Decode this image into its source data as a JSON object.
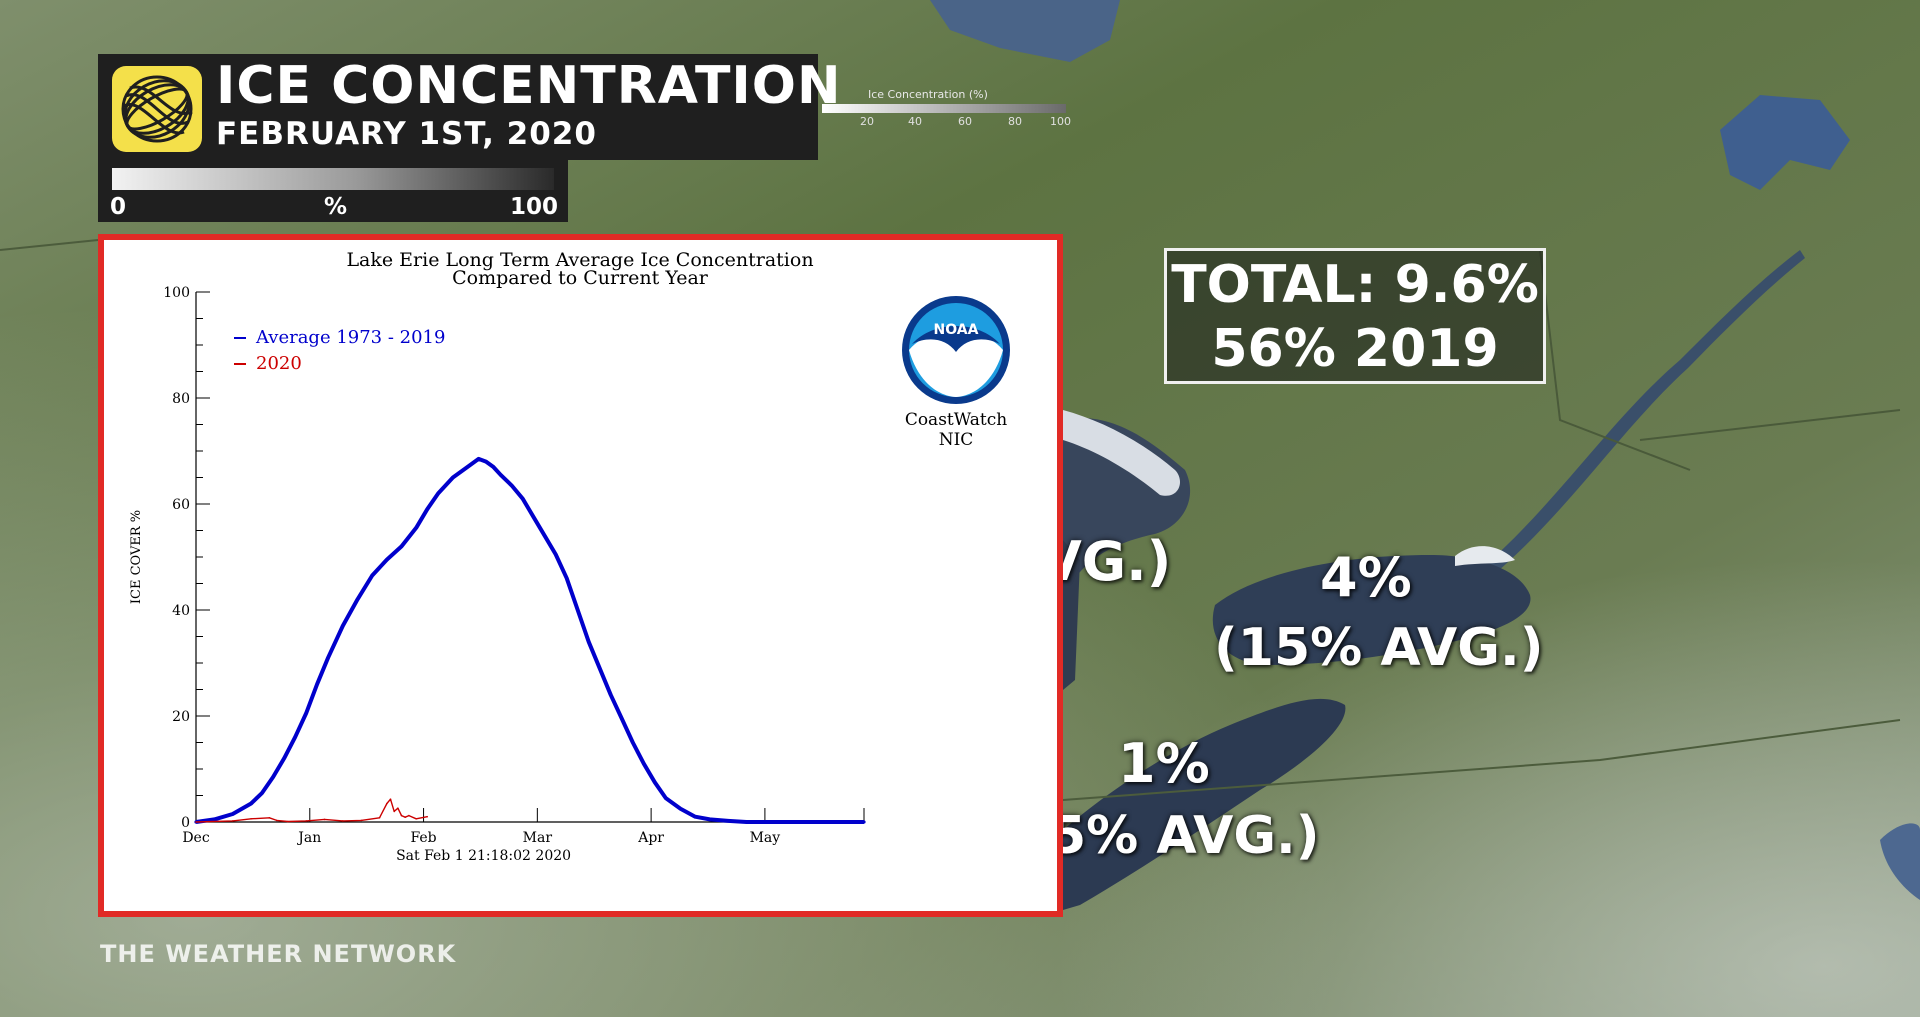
{
  "header": {
    "title": "ICE CONCENTRATION",
    "subtitle": "FEBRUARY 1ST, 2020"
  },
  "legend_scale": {
    "min": "0",
    "unit": "%",
    "max": "100"
  },
  "map_scale": {
    "title": "Ice Concentration (%)",
    "ticks": [
      "20",
      "40",
      "60",
      "80",
      "100"
    ]
  },
  "total_box": {
    "line1": "TOTAL: 9.6%",
    "line2": "56% 2019"
  },
  "lake_labels": {
    "huron": {
      "value": "VG.)"
    },
    "ontario": {
      "value": "4%",
      "avg": "(15% AVG.)"
    },
    "erie": {
      "value": "1%",
      "avg": "5% AVG.)"
    }
  },
  "branding": "THE WEATHER NETWORK",
  "colors": {
    "frame_red": "#e12a25",
    "average_series": "#0000cc",
    "current_series": "#cc0000",
    "logo_yellow": "#f4e04a"
  },
  "noaa_logo": {
    "text": "NOAA",
    "caption_line1": "CoastWatch",
    "caption_line2": "NIC"
  },
  "chart_data": {
    "type": "line",
    "title": "Lake Erie Long Term Average Ice Concentration",
    "subtitle": "Compared to Current Year",
    "ylabel": "ICE COVER %",
    "xlabel": "Sat Feb  1 21:18:02 2020",
    "ylim": [
      0,
      100
    ],
    "yticks": [
      "0",
      "20",
      "40",
      "60",
      "80",
      "100"
    ],
    "xlim": [
      0,
      182
    ],
    "xticks": [
      {
        "label": "Dec",
        "day": 0
      },
      {
        "label": "Jan",
        "day": 31
      },
      {
        "label": "Feb",
        "day": 62
      },
      {
        "label": "Mar",
        "day": 93
      },
      {
        "label": "Apr",
        "day": 124
      },
      {
        "label": "May",
        "day": 155
      }
    ],
    "legend_position": "top-left",
    "series": [
      {
        "name": "Average 1973 - 2019",
        "color": "#0000cc",
        "x": [
          0,
          5,
          10,
          15,
          18,
          21,
          24,
          27,
          30,
          33,
          36,
          40,
          44,
          48,
          52,
          56,
          60,
          63,
          66,
          70,
          74,
          77,
          79,
          81,
          83,
          86,
          89,
          92,
          95,
          98,
          101,
          104,
          107,
          110,
          113,
          116,
          119,
          122,
          125,
          128,
          132,
          136,
          140,
          145,
          150,
          155,
          165,
          175,
          182
        ],
        "y": [
          0,
          0.5,
          1.5,
          3.5,
          5.5,
          8.5,
          12,
          16,
          20.5,
          26,
          31,
          37,
          42,
          46.5,
          49.5,
          52,
          55.5,
          59,
          62,
          65,
          67,
          68.5,
          68,
          67,
          65.5,
          63.5,
          61,
          57.5,
          54,
          50.5,
          46,
          40,
          34,
          29,
          24,
          19.5,
          15,
          11,
          7.5,
          4.5,
          2.5,
          1,
          0.5,
          0.2,
          0,
          0,
          0,
          0,
          0
        ]
      },
      {
        "name": "2020",
        "color": "#cc0000",
        "x": [
          0,
          10,
          15,
          20,
          22,
          25,
          30,
          35,
          40,
          45,
          50,
          52,
          53,
          54,
          55,
          56,
          57,
          58,
          60,
          63
        ],
        "y": [
          0,
          0.2,
          0.6,
          0.8,
          0.3,
          0.1,
          0.2,
          0.5,
          0.2,
          0.3,
          0.8,
          3.5,
          4.3,
          2,
          2.6,
          1.2,
          0.9,
          1.2,
          0.6,
          1
        ]
      }
    ]
  }
}
